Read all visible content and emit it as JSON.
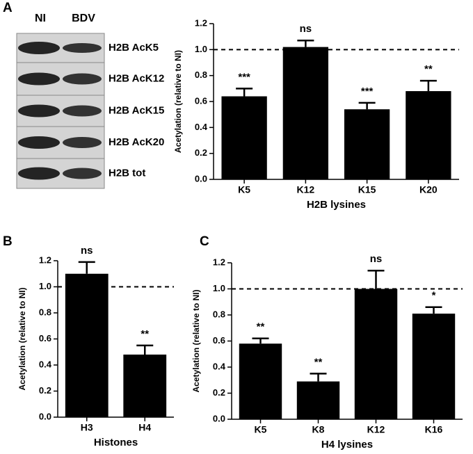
{
  "blot": {
    "panel": "A",
    "lanes": [
      "NI",
      "BDV"
    ],
    "rows": [
      "H2B AcK5",
      "H2B AcK12",
      "H2B AcK15",
      "H2B AcK20",
      "H2B tot"
    ]
  },
  "chart_data": [
    {
      "type": "bar",
      "panel": "A",
      "categories": [
        "K5",
        "K12",
        "K15",
        "K20"
      ],
      "values": [
        0.64,
        1.02,
        0.54,
        0.68
      ],
      "errors": [
        0.06,
        0.05,
        0.05,
        0.08
      ],
      "annotations": [
        "***",
        "ns",
        "***",
        "**"
      ],
      "color": "#000000",
      "x_label": "H2B lysines",
      "y_label": "Acetylation (relative to NI)",
      "ylim": [
        0,
        1.2
      ],
      "yticks": [
        {
          "value": 0,
          "label": "0.0"
        },
        0.2,
        0.4,
        0.6,
        0.8,
        {
          "value": 1,
          "label": "1.0"
        },
        1.2
      ],
      "reference_line": 1
    },
    {
      "type": "bar",
      "panel": "B",
      "categories": [
        "H3",
        "H4"
      ],
      "values": [
        1.1,
        0.48
      ],
      "errors": [
        0.09,
        0.07
      ],
      "annotations": [
        "ns",
        "**"
      ],
      "color": "#000000",
      "x_label": "Histones",
      "y_label": "Acetylation (relative to NI)",
      "ylim": [
        0,
        1.2
      ],
      "yticks": [
        {
          "value": 0,
          "label": "0.0"
        },
        0.2,
        0.4,
        0.6,
        0.8,
        {
          "value": 1,
          "label": "1.0"
        },
        1.2
      ],
      "reference_line": 1
    },
    {
      "type": "bar",
      "panel": "C",
      "categories": [
        "K5",
        "K8",
        "K12",
        "K16"
      ],
      "values": [
        0.58,
        0.29,
        1.0,
        0.81
      ],
      "errors": [
        0.04,
        0.06,
        0.14,
        0.05
      ],
      "annotations": [
        "**",
        "**",
        "ns",
        "*"
      ],
      "color": "#000000",
      "x_label": "H4 lysines",
      "y_label": "Acetylation (relative to NI)",
      "ylim": [
        0,
        1.2
      ],
      "yticks": [
        {
          "value": 0,
          "label": "0.0"
        },
        0.2,
        0.4,
        0.6,
        0.8,
        {
          "value": 1,
          "label": "1.0"
        },
        1.2
      ],
      "reference_line": 1
    }
  ]
}
